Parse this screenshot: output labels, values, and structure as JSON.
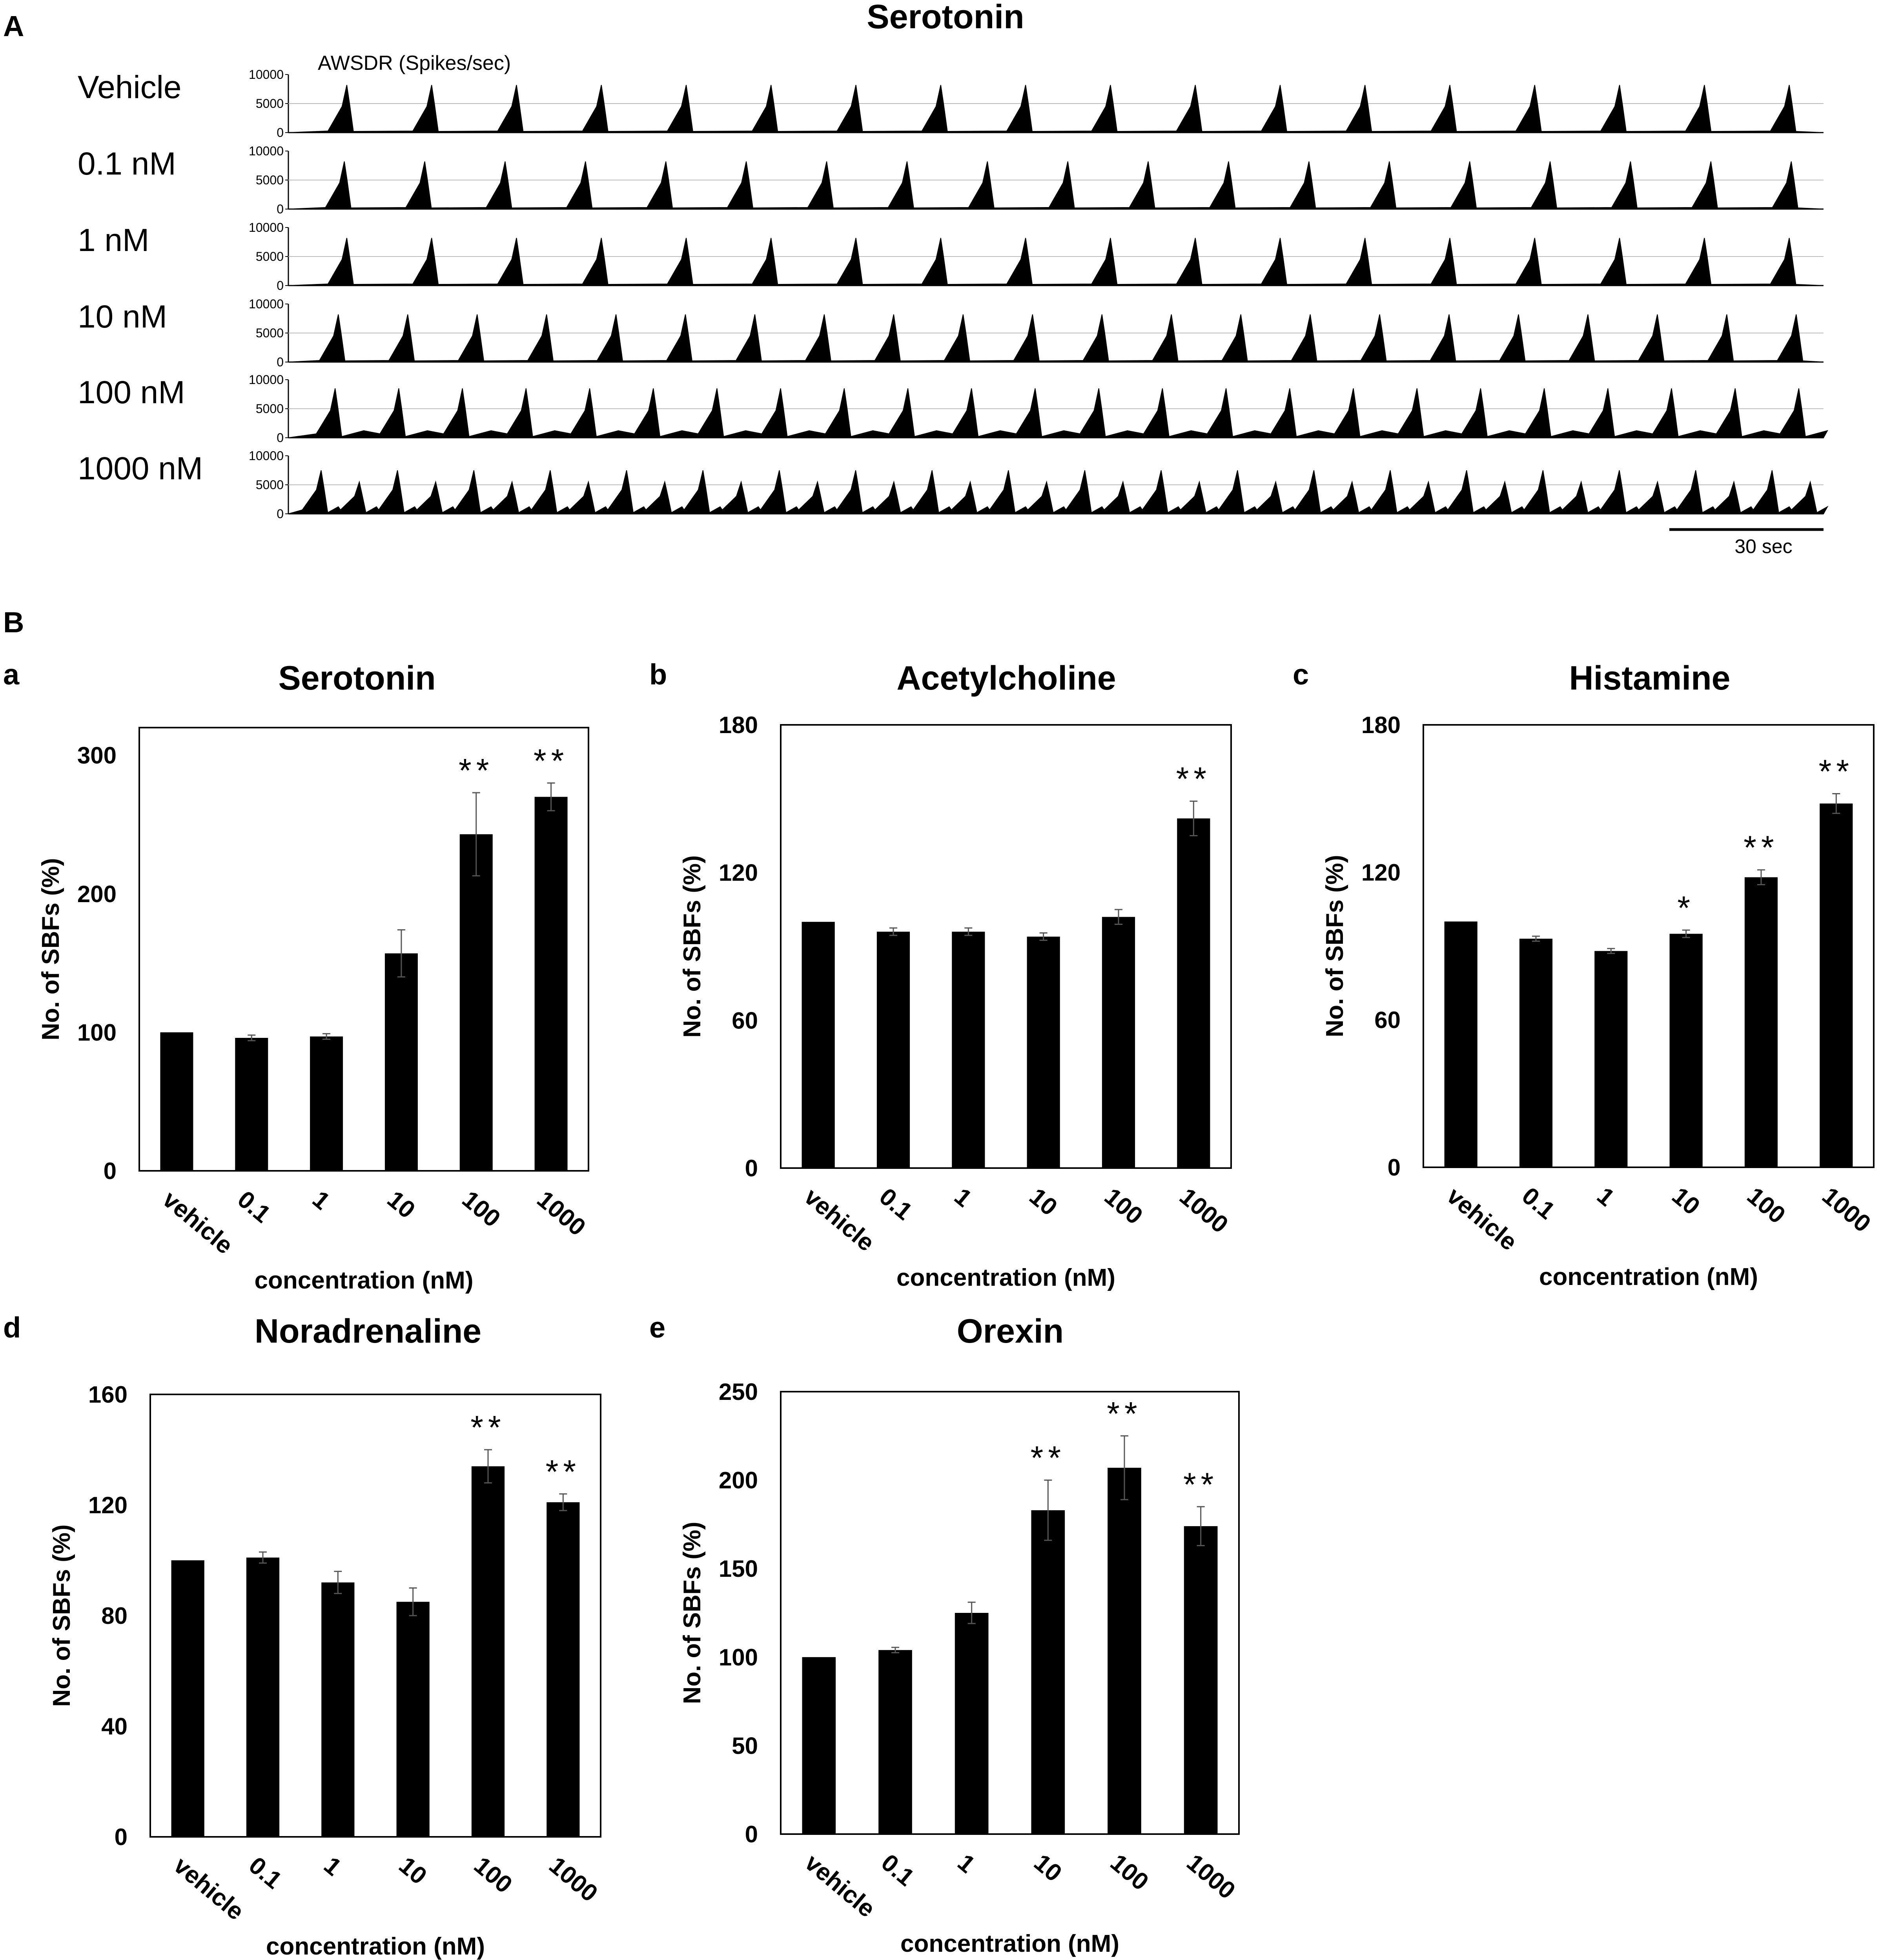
{
  "panel_A": {
    "letter": "A",
    "title": "Serotonin",
    "unit_label": "AWSDR (Spikes/sec)",
    "scale_bar_label": "30 sec",
    "trace_ticks": [
      "10000",
      "5000",
      "0"
    ],
    "traces": [
      {
        "label": "Vehicle",
        "bursts": 18
      },
      {
        "label": "0.1 nM",
        "bursts": 19
      },
      {
        "label": "1 nM",
        "bursts": 18
      },
      {
        "label": "10 nM",
        "bursts": 22
      },
      {
        "label": "100 nM",
        "bursts": 24
      },
      {
        "label": "1000 nM",
        "bursts": 40
      }
    ]
  },
  "panel_B": {
    "letter": "B"
  },
  "chart_data": [
    {
      "letter": "a",
      "type": "bar",
      "title": "Serotonin",
      "categories": [
        "vehicle",
        "0.1",
        "1",
        "10",
        "100",
        "1000"
      ],
      "values": [
        100,
        96,
        97,
        157,
        243,
        270
      ],
      "errors": [
        0,
        2,
        2,
        17,
        30,
        10
      ],
      "significance": [
        "",
        "",
        "",
        "",
        "**",
        "**"
      ],
      "ylim": [
        0,
        320
      ],
      "yticks": [
        "0",
        "100",
        "200",
        "300"
      ],
      "ylabel": "No. of SBFs (%)",
      "xlabel": "concentration (nM)"
    },
    {
      "letter": "b",
      "type": "bar",
      "title": "Acetylcholine",
      "categories": [
        "vehicle",
        "0.1",
        "1",
        "10",
        "100",
        "1000"
      ],
      "values": [
        100,
        96,
        96,
        94,
        102,
        142
      ],
      "errors": [
        0,
        1.5,
        1.5,
        1.5,
        3,
        7
      ],
      "significance": [
        "",
        "",
        "",
        "",
        "",
        "**"
      ],
      "ylim": [
        0,
        180
      ],
      "yticks": [
        "0",
        "60",
        "120",
        "180"
      ],
      "ylabel": "No. of SBFs (%)",
      "xlabel": "concentration (nM)"
    },
    {
      "letter": "c",
      "type": "bar",
      "title": "Histamine",
      "categories": [
        "vehicle",
        "0.1",
        "1",
        "10",
        "100",
        "1000"
      ],
      "values": [
        100,
        93,
        88,
        95,
        118,
        148
      ],
      "errors": [
        0,
        1,
        1,
        1.5,
        3,
        4
      ],
      "significance": [
        "",
        "",
        "",
        "*",
        "**",
        "**"
      ],
      "ylim": [
        0,
        180
      ],
      "yticks": [
        "0",
        "60",
        "120",
        "180"
      ],
      "ylabel": "No. of SBFs (%)",
      "xlabel": "concentration (nM)"
    },
    {
      "letter": "d",
      "type": "bar",
      "title": "Noradrenaline",
      "categories": [
        "vehicle",
        "0.1",
        "1",
        "10",
        "100",
        "1000"
      ],
      "values": [
        100,
        101,
        92,
        85,
        134,
        121
      ],
      "errors": [
        0,
        2,
        4,
        5,
        6,
        3
      ],
      "significance": [
        "",
        "",
        "",
        "",
        "**",
        "**"
      ],
      "ylim": [
        0,
        160
      ],
      "yticks": [
        "0",
        "40",
        "80",
        "120",
        "160"
      ],
      "ylabel": "No. of SBFs (%)",
      "xlabel": "concentration (nM)"
    },
    {
      "letter": "e",
      "type": "bar",
      "title": "Orexin",
      "categories": [
        "vehicle",
        "0.1",
        "1",
        "10",
        "100",
        "1000"
      ],
      "values": [
        100,
        104,
        125,
        183,
        207,
        174
      ],
      "errors": [
        0,
        1.5,
        6,
        17,
        18,
        11
      ],
      "significance": [
        "",
        "",
        "",
        "**",
        "**",
        "**"
      ],
      "ylim": [
        0,
        250
      ],
      "yticks": [
        "0",
        "50",
        "100",
        "150",
        "200",
        "250"
      ],
      "ylabel": "No. of SBFs (%)",
      "xlabel": "concentration (nM)"
    }
  ]
}
